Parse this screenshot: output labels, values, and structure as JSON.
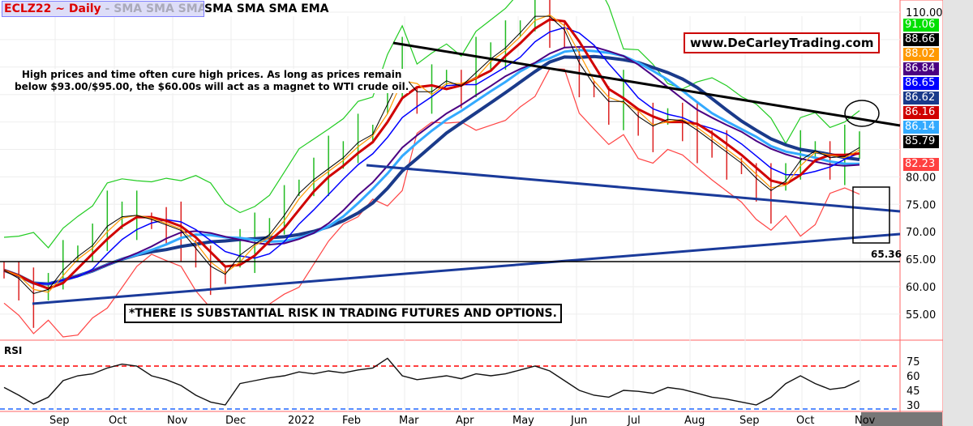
{
  "header": {
    "symbol": "ECLZ22 ~ Daily",
    "indicators_faded": "  -  SMA SMA SMA BB",
    "indicators": "SMA SMA SMA EMA"
  },
  "annotations": {
    "note_line1": "High prices and time often cure high prices. As long as prices remain",
    "note_line2": "below $93.00/$95.00, the $60.00s will act as a magnet to WTI crude oil.",
    "website": "www.DeCarleyTrading.com",
    "risk": "*THERE IS SUBSTANTIAL RISK IN TRADING FUTURES AND OPTIONS.",
    "support_level": "65.36"
  },
  "badges": [
    {
      "v": "91.06",
      "bg": "#00e000",
      "fg": "#fff"
    },
    {
      "v": "88.66",
      "bg": "#000000",
      "fg": "#fff"
    },
    {
      "v": "88.02",
      "bg": "#ff9900",
      "fg": "#fff"
    },
    {
      "v": "86.84",
      "bg": "#4b0082",
      "fg": "#fff"
    },
    {
      "v": "86.65",
      "bg": "#0000ff",
      "fg": "#fff"
    },
    {
      "v": "86.62",
      "bg": "#1a3a8a",
      "fg": "#fff"
    },
    {
      "v": "86.16",
      "bg": "#d00000",
      "fg": "#fff"
    },
    {
      "v": "86.14",
      "bg": "#33aaff",
      "fg": "#fff"
    },
    {
      "v": "85.79",
      "bg": "#000000",
      "fg": "#fff"
    },
    {
      "v": "82.23",
      "bg": "#ff4040",
      "fg": "#fff"
    }
  ],
  "chart_data": {
    "type": "line",
    "title": "ECLZ22 ~ Daily",
    "price_axis": {
      "ylim": [
        52,
        112
      ],
      "ticks": [
        "110.00",
        "80.00",
        "75.00",
        "70.00",
        "65.00",
        "60.00",
        "55.00"
      ]
    },
    "x_labels": [
      "Sep",
      "Oct",
      "Nov",
      "Dec",
      "2022",
      "Feb",
      "Mar",
      "Apr",
      "May",
      "Jun",
      "Jul",
      "Aug",
      "Sep",
      "Oct",
      "Nov"
    ],
    "close_weekly": [
      63,
      61,
      58,
      60,
      64,
      66,
      68,
      72,
      73,
      73,
      72,
      71,
      70,
      66,
      63,
      62,
      67,
      68,
      70,
      74,
      78,
      80,
      82,
      84,
      87,
      88,
      95,
      100,
      94,
      96,
      98,
      96,
      100,
      102,
      104,
      107,
      110,
      109,
      106,
      99,
      96,
      93,
      94,
      90,
      89,
      91,
      90,
      88,
      86,
      84,
      82,
      79,
      77,
      80,
      84,
      85,
      83,
      84,
      85.79
    ],
    "rsi": {
      "label": "RSI",
      "ticks": [
        "75",
        "60",
        "45",
        "30"
      ],
      "overbought": 70,
      "oversold": 30,
      "values": [
        48,
        40,
        31,
        38,
        55,
        60,
        62,
        68,
        72,
        70,
        60,
        56,
        50,
        40,
        33,
        30,
        52,
        55,
        58,
        60,
        64,
        62,
        65,
        63,
        66,
        68,
        78,
        60,
        56,
        58,
        60,
        57,
        62,
        60,
        62,
        66,
        70,
        65,
        55,
        45,
        40,
        38,
        45,
        44,
        42,
        48,
        46,
        42,
        38,
        36,
        33,
        30,
        38,
        52,
        60,
        52,
        46,
        48,
        55
      ]
    },
    "current": 85.79
  }
}
